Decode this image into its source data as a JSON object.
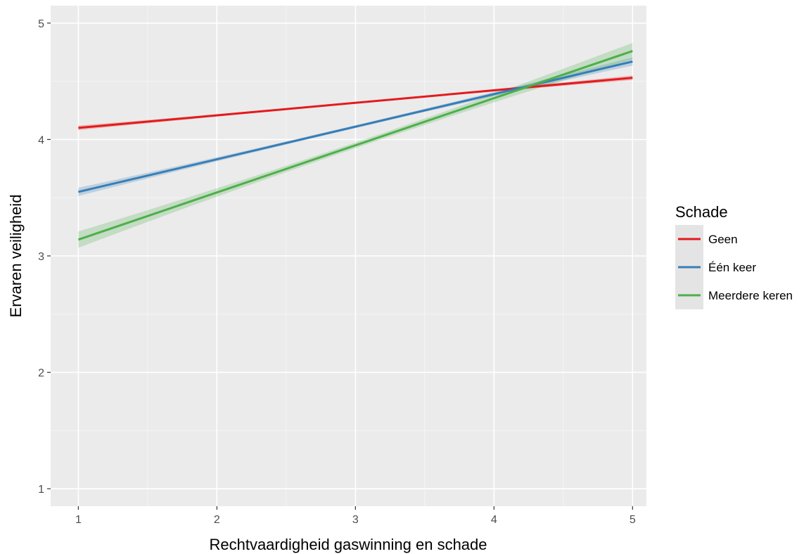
{
  "chart_data": {
    "type": "line",
    "title": "",
    "xlabel": "Rechtvaardigheid gaswinning en schade",
    "ylabel": "Ervaren veiligheid",
    "xlim": [
      0.8,
      5.1
    ],
    "ylim": [
      0.85,
      5.15
    ],
    "x_ticks": [
      1,
      2,
      3,
      4,
      5
    ],
    "y_ticks": [
      1,
      2,
      3,
      4,
      5
    ],
    "x_tick_labels": [
      "1",
      "2",
      "3",
      "4",
      "5"
    ],
    "y_tick_labels": [
      "1",
      "2",
      "3",
      "4",
      "5"
    ],
    "grid": true,
    "legend": {
      "title": "Schade",
      "position": "right"
    },
    "series": [
      {
        "name": "Geen",
        "color": "#e41a1c",
        "x": [
          1,
          5
        ],
        "y": [
          4.1,
          4.53
        ],
        "ci": 0.02
      },
      {
        "name": "Één keer",
        "color": "#377eb8",
        "x": [
          1,
          5
        ],
        "y": [
          3.55,
          4.67
        ],
        "ci": 0.035
      },
      {
        "name": "Meerdere keren",
        "color": "#4daf4a",
        "x": [
          1,
          5
        ],
        "y": [
          3.14,
          4.76
        ],
        "ci": 0.07
      }
    ]
  }
}
